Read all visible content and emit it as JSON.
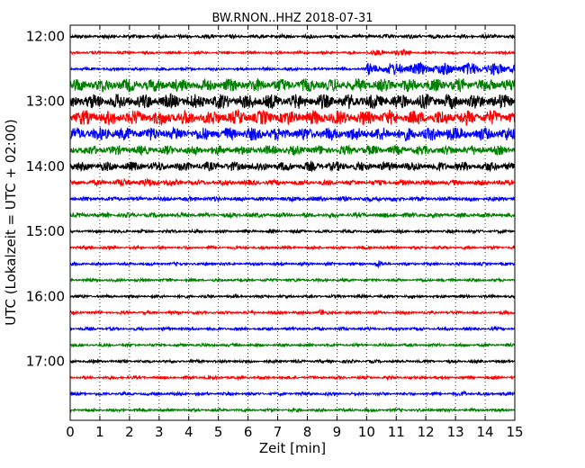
{
  "chart_data": {
    "type": "line",
    "title": "BW.RNON..HHZ 2018-07-31",
    "xlabel": "Zeit  [min]",
    "ylabel": "UTC (Lokalzeit = UTC + 02:00)",
    "xlim": [
      0,
      15
    ],
    "x_ticks": [
      "0",
      "1",
      "2",
      "3",
      "4",
      "5",
      "6",
      "7",
      "8",
      "9",
      "10",
      "11",
      "12",
      "13",
      "14",
      "15"
    ],
    "y_ticks": [
      "12:00",
      "13:00",
      "14:00",
      "15:00",
      "16:00",
      "17:00"
    ],
    "grid": true,
    "trace_colors": [
      "#000000",
      "#ff0000",
      "#0000ff",
      "#008000"
    ],
    "traces": [
      {
        "start": "12:00",
        "amplitude": 0.25,
        "bursts": [],
        "color": "#000000"
      },
      {
        "start": "12:15",
        "amplitude": 0.18,
        "bursts": [
          [
            10.0,
            11.5,
            0.35
          ],
          [
            10.8,
            0.3
          ]
        ],
        "color": "#ff0000"
      },
      {
        "start": "12:30",
        "amplitude": 0.2,
        "bursts": [
          [
            10.0,
            15.0,
            0.8
          ]
        ],
        "color": "#0000ff"
      },
      {
        "start": "12:45",
        "amplitude": 0.85,
        "bursts": [],
        "color": "#008000"
      },
      {
        "start": "13:00",
        "amplitude": 0.95,
        "bursts": [],
        "color": "#000000"
      },
      {
        "start": "13:15",
        "amplitude": 0.95,
        "bursts": [],
        "color": "#ff0000"
      },
      {
        "start": "13:30",
        "amplitude": 0.85,
        "bursts": [
          [
            12.8,
            1.4
          ]
        ],
        "color": "#0000ff"
      },
      {
        "start": "13:45",
        "amplitude": 0.6,
        "bursts": [],
        "color": "#008000"
      },
      {
        "start": "14:00",
        "amplitude": 0.6,
        "bursts": [],
        "color": "#000000"
      },
      {
        "start": "14:15",
        "amplitude": 0.35,
        "bursts": [
          [
            1.5,
            3.5,
            0.5
          ]
        ],
        "color": "#ff0000"
      },
      {
        "start": "14:30",
        "amplitude": 0.3,
        "bursts": [
          [
            10.4,
            0.4
          ]
        ],
        "color": "#0000ff"
      },
      {
        "start": "14:45",
        "amplitude": 0.3,
        "bursts": [],
        "color": "#008000"
      },
      {
        "start": "15:00",
        "amplitude": 0.2,
        "bursts": [],
        "color": "#000000"
      },
      {
        "start": "15:15",
        "amplitude": 0.2,
        "bursts": [],
        "color": "#ff0000"
      },
      {
        "start": "15:30",
        "amplitude": 0.2,
        "bursts": [
          [
            10.4,
            0.35
          ]
        ],
        "color": "#0000ff"
      },
      {
        "start": "15:45",
        "amplitude": 0.2,
        "bursts": [],
        "color": "#008000"
      },
      {
        "start": "16:00",
        "amplitude": 0.2,
        "bursts": [],
        "color": "#000000"
      },
      {
        "start": "16:15",
        "amplitude": 0.2,
        "bursts": [
          [
            8.45,
            0.6
          ]
        ],
        "color": "#ff0000"
      },
      {
        "start": "16:30",
        "amplitude": 0.2,
        "bursts": [],
        "color": "#0000ff"
      },
      {
        "start": "16:45",
        "amplitude": 0.2,
        "bursts": [],
        "color": "#008000"
      },
      {
        "start": "17:00",
        "amplitude": 0.2,
        "bursts": [],
        "color": "#000000"
      },
      {
        "start": "17:15",
        "amplitude": 0.2,
        "bursts": [],
        "color": "#ff0000"
      },
      {
        "start": "17:30",
        "amplitude": 0.2,
        "bursts": [
          [
            13.3,
            0.4
          ]
        ],
        "color": "#0000ff"
      },
      {
        "start": "17:45",
        "amplitude": 0.2,
        "bursts": [],
        "color": "#008000"
      }
    ]
  }
}
